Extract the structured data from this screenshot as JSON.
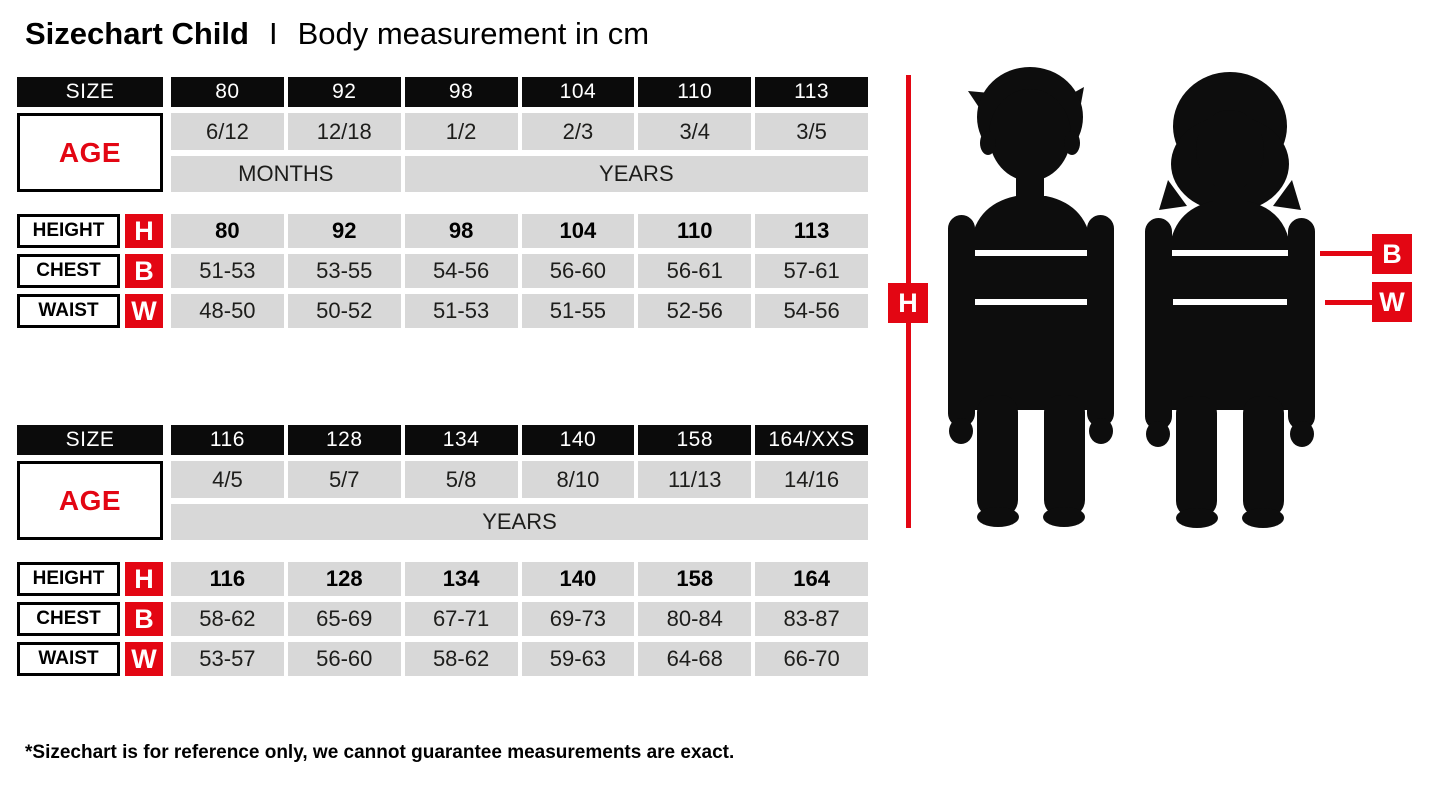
{
  "header": {
    "title": "Sizechart Child",
    "separator": "I",
    "subtitle": "Body measurement in cm"
  },
  "labels": {
    "size": "SIZE",
    "age": "AGE",
    "height": "HEIGHT",
    "chest": "CHEST",
    "waist": "WAIST",
    "h": "H",
    "b": "B",
    "w": "W"
  },
  "colors": {
    "red": "#e30613",
    "black": "#0b0b0b",
    "cell_gray": "#d8d8d8",
    "text_dark": "#1d1d1b"
  },
  "tables": [
    {
      "sizes": [
        "80",
        "92",
        "98",
        "104",
        "110",
        "113"
      ],
      "ages": [
        "6/12",
        "12/18",
        "1/2",
        "2/3",
        "3/4",
        "3/5"
      ],
      "age_units": [
        {
          "label": "MONTHS",
          "span": 2
        },
        {
          "label": "YEARS",
          "span": 4
        }
      ],
      "height": [
        "80",
        "92",
        "98",
        "104",
        "110",
        "113"
      ],
      "chest": [
        "51-53",
        "53-55",
        "54-56",
        "56-60",
        "56-61",
        "57-61"
      ],
      "waist": [
        "48-50",
        "50-52",
        "51-53",
        "51-55",
        "52-56",
        "54-56"
      ]
    },
    {
      "sizes": [
        "116",
        "128",
        "134",
        "140",
        "158",
        "164/XXS"
      ],
      "ages": [
        "4/5",
        "5/7",
        "5/8",
        "8/10",
        "11/13",
        "14/16"
      ],
      "age_units": [
        {
          "label": "YEARS",
          "span": 6
        }
      ],
      "height": [
        "116",
        "128",
        "134",
        "140",
        "158",
        "164"
      ],
      "chest": [
        "58-62",
        "65-69",
        "67-71",
        "69-73",
        "80-84",
        "83-87"
      ],
      "waist": [
        "53-57",
        "56-60",
        "58-62",
        "59-63",
        "64-68",
        "66-70"
      ]
    }
  ],
  "figure": {
    "height_marker": "H",
    "chest_marker": "B",
    "waist_marker": "W"
  },
  "footer": {
    "note": "*Sizechart is for reference only, we cannot guarantee measurements are exact."
  }
}
